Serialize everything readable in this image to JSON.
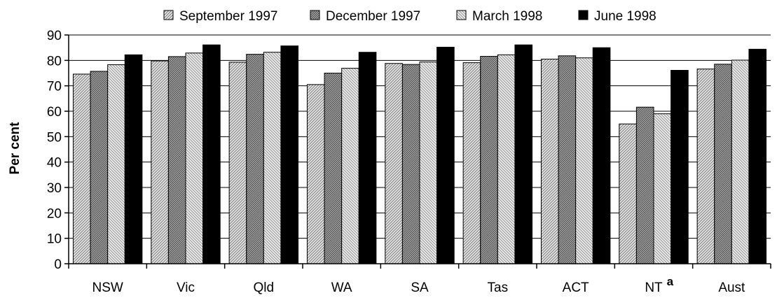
{
  "chart_data": {
    "type": "bar",
    "title": "",
    "xlabel": "",
    "ylabel": "Per cent",
    "ylim": [
      0,
      90
    ],
    "yticks": [
      0,
      10,
      20,
      30,
      40,
      50,
      60,
      70,
      80,
      90
    ],
    "grid": true,
    "legend_position": "top",
    "categories": [
      "NSW",
      "Vic",
      "Qld",
      "WA",
      "SA",
      "Tas",
      "ACT",
      "NT",
      "Aust"
    ],
    "category_notes": {
      "NT": "a"
    },
    "series": [
      {
        "name": "September 1997",
        "color": "#c8c8c8",
        "pattern": "fine-hatch-light",
        "values": [
          74.6,
          79.8,
          79.3,
          70.5,
          78.8,
          79.1,
          80.5,
          55.0,
          76.6
        ]
      },
      {
        "name": "December 1997",
        "color": "#8c8c8c",
        "pattern": "hatch-dark",
        "values": [
          75.7,
          81.5,
          82.4,
          75.0,
          78.4,
          81.6,
          81.8,
          61.6,
          78.5
        ]
      },
      {
        "name": "March 1998",
        "color": "#d8d8d8",
        "pattern": "fine-hatch-light",
        "values": [
          78.3,
          82.9,
          83.2,
          76.9,
          79.4,
          82.2,
          81.0,
          59.0,
          80.1
        ]
      },
      {
        "name": "June 1998",
        "color": "#000000",
        "pattern": "solid",
        "values": [
          82.2,
          86.1,
          85.7,
          83.2,
          85.2,
          86.1,
          85.0,
          76.1,
          84.4
        ]
      }
    ]
  }
}
